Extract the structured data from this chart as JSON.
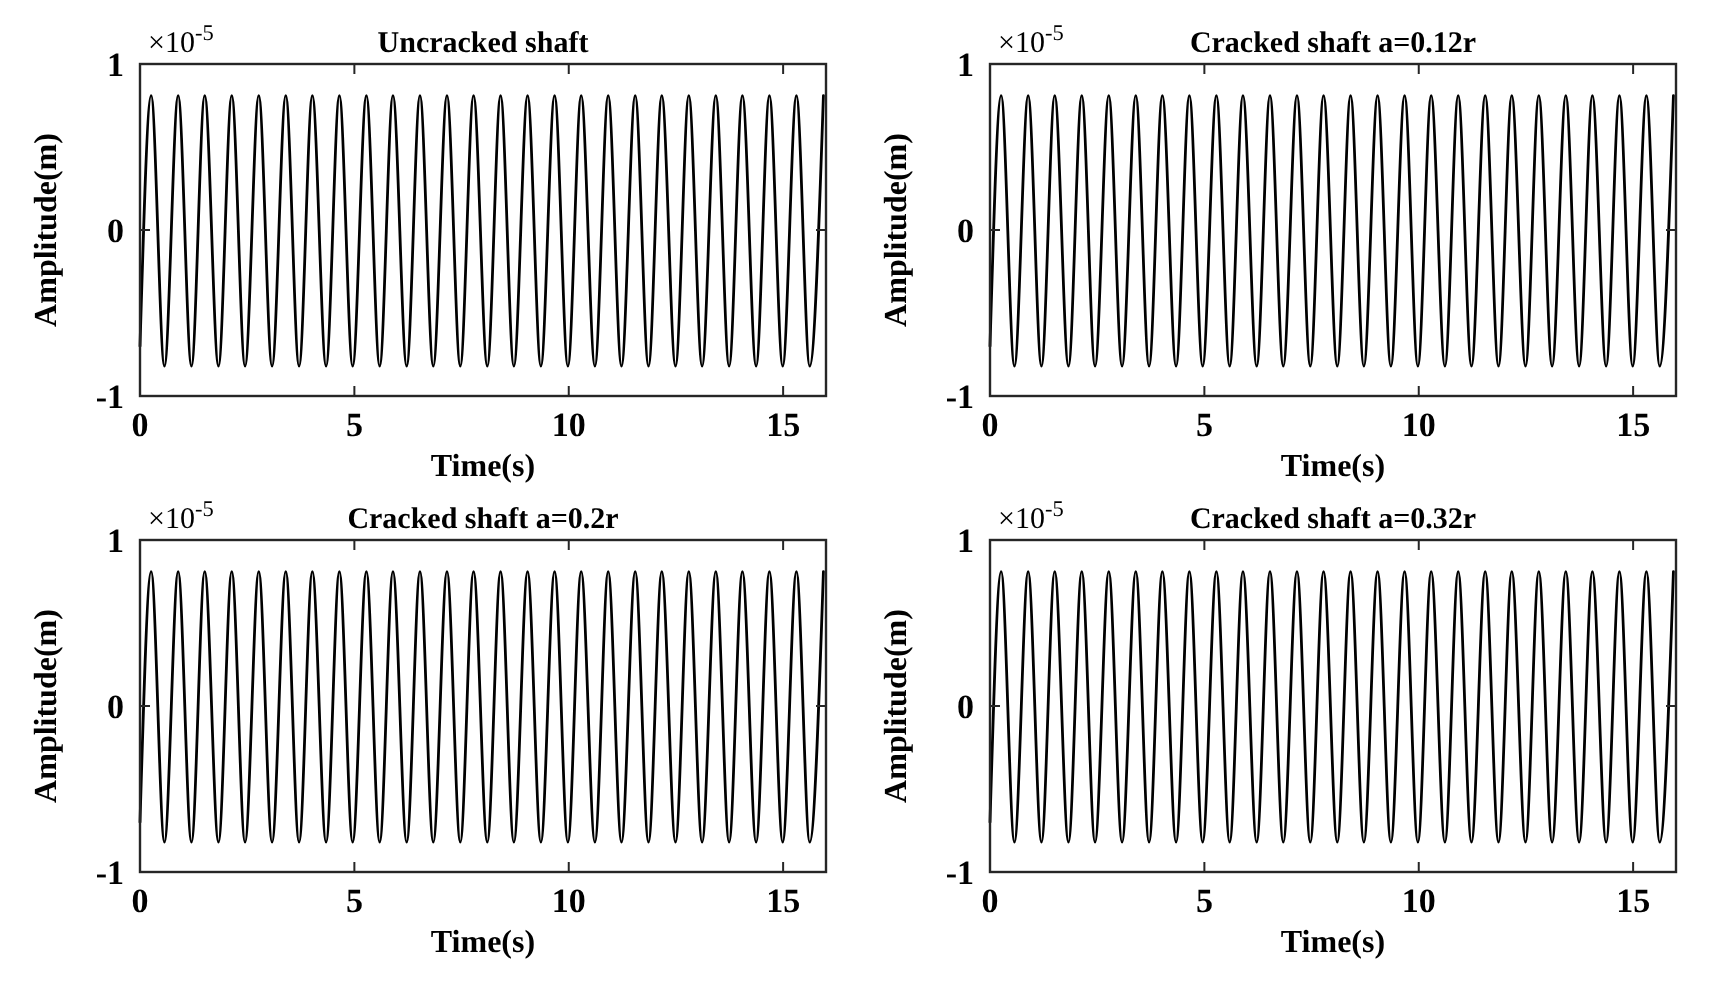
{
  "chart_data": [
    {
      "type": "line",
      "title": "Uncracked shaft",
      "xlabel": "Time(s)",
      "ylabel": "Amplitude(m)",
      "annotations": [
        "×10$^{-5}$"
      ],
      "xlim": [
        0,
        16
      ],
      "xticks": [
        0,
        5,
        10,
        15
      ],
      "ylim": [
        -1,
        1
      ],
      "yticks": [
        -1,
        0,
        1
      ],
      "color": "#000000",
      "x": [
        0,
        0.26,
        0.57,
        0.89,
        1.2,
        1.51,
        1.83,
        2.14,
        2.45,
        2.77,
        3.08,
        3.4,
        3.71,
        4.02,
        4.34,
        4.65,
        4.96,
        5.28,
        5.59,
        5.9,
        6.22,
        6.53,
        6.84,
        7.16,
        7.47,
        7.78,
        8.1,
        8.41,
        8.72,
        9.04,
        9.35,
        9.67,
        9.98,
        10.29,
        10.61,
        10.92,
        11.23,
        11.55,
        11.86,
        12.17,
        12.49,
        12.8,
        13.11,
        13.43,
        13.74,
        14.05,
        14.37,
        14.68,
        14.99,
        15.31,
        15.62,
        15.94
      ],
      "values": [
        -0.7,
        0.81,
        -0.82,
        0.81,
        -0.82,
        0.81,
        -0.82,
        0.81,
        -0.82,
        0.81,
        -0.82,
        0.81,
        -0.82,
        0.81,
        -0.82,
        0.81,
        -0.82,
        0.81,
        -0.82,
        0.81,
        -0.82,
        0.81,
        -0.82,
        0.81,
        -0.82,
        0.81,
        -0.82,
        0.81,
        -0.82,
        0.81,
        -0.82,
        0.81,
        -0.82,
        0.81,
        -0.82,
        0.81,
        -0.82,
        0.81,
        -0.82,
        0.81,
        -0.82,
        0.81,
        -0.82,
        0.81,
        -0.82,
        0.81,
        -0.82,
        0.81,
        -0.82,
        0.81,
        -0.82,
        0.81
      ]
    },
    {
      "type": "line",
      "title": "Cracked shaft a=0.12r",
      "xlabel": "Time(s)",
      "ylabel": "Amplitude(m)",
      "annotations": [
        "×10$^{-5}$"
      ],
      "xlim": [
        0,
        16
      ],
      "xticks": [
        0,
        5,
        10,
        15
      ],
      "ylim": [
        -1,
        1
      ],
      "yticks": [
        -1,
        0,
        1
      ],
      "color": "#000000",
      "x": [
        0,
        0.26,
        0.57,
        0.89,
        1.2,
        1.51,
        1.83,
        2.14,
        2.45,
        2.77,
        3.08,
        3.4,
        3.71,
        4.02,
        4.34,
        4.65,
        4.96,
        5.28,
        5.59,
        5.9,
        6.22,
        6.53,
        6.84,
        7.16,
        7.47,
        7.78,
        8.1,
        8.41,
        8.72,
        9.04,
        9.35,
        9.67,
        9.98,
        10.29,
        10.61,
        10.92,
        11.23,
        11.55,
        11.86,
        12.17,
        12.49,
        12.8,
        13.11,
        13.43,
        13.74,
        14.05,
        14.37,
        14.68,
        14.99,
        15.31,
        15.62,
        15.94
      ],
      "values": [
        -0.7,
        0.81,
        -0.82,
        0.81,
        -0.82,
        0.81,
        -0.82,
        0.81,
        -0.82,
        0.81,
        -0.82,
        0.81,
        -0.82,
        0.81,
        -0.82,
        0.81,
        -0.82,
        0.81,
        -0.82,
        0.81,
        -0.82,
        0.81,
        -0.82,
        0.81,
        -0.82,
        0.81,
        -0.82,
        0.81,
        -0.82,
        0.81,
        -0.82,
        0.81,
        -0.82,
        0.81,
        -0.82,
        0.81,
        -0.82,
        0.81,
        -0.82,
        0.81,
        -0.82,
        0.81,
        -0.82,
        0.81,
        -0.82,
        0.81,
        -0.82,
        0.81,
        -0.82,
        0.81,
        -0.82,
        0.81
      ]
    },
    {
      "type": "line",
      "title": "Cracked shaft a=0.2r",
      "xlabel": "Time(s)",
      "ylabel": "Amplitude(m)",
      "annotations": [
        "×10$^{-5}$"
      ],
      "xlim": [
        0,
        16
      ],
      "xticks": [
        0,
        5,
        10,
        15
      ],
      "ylim": [
        -1,
        1
      ],
      "yticks": [
        -1,
        0,
        1
      ],
      "color": "#000000",
      "x": [
        0,
        0.26,
        0.57,
        0.89,
        1.2,
        1.51,
        1.83,
        2.14,
        2.45,
        2.77,
        3.08,
        3.4,
        3.71,
        4.02,
        4.34,
        4.65,
        4.96,
        5.28,
        5.59,
        5.9,
        6.22,
        6.53,
        6.84,
        7.16,
        7.47,
        7.78,
        8.1,
        8.41,
        8.72,
        9.04,
        9.35,
        9.67,
        9.98,
        10.29,
        10.61,
        10.92,
        11.23,
        11.55,
        11.86,
        12.17,
        12.49,
        12.8,
        13.11,
        13.43,
        13.74,
        14.05,
        14.37,
        14.68,
        14.99,
        15.31,
        15.62,
        15.94
      ],
      "values": [
        -0.7,
        0.81,
        -0.82,
        0.81,
        -0.82,
        0.81,
        -0.82,
        0.81,
        -0.82,
        0.81,
        -0.82,
        0.81,
        -0.82,
        0.81,
        -0.82,
        0.81,
        -0.82,
        0.81,
        -0.82,
        0.81,
        -0.82,
        0.81,
        -0.82,
        0.81,
        -0.82,
        0.81,
        -0.82,
        0.81,
        -0.82,
        0.81,
        -0.82,
        0.81,
        -0.82,
        0.81,
        -0.82,
        0.81,
        -0.82,
        0.81,
        -0.82,
        0.81,
        -0.82,
        0.81,
        -0.82,
        0.81,
        -0.82,
        0.81,
        -0.82,
        0.81,
        -0.82,
        0.81,
        -0.82,
        0.81
      ]
    },
    {
      "type": "line",
      "title": "Cracked shaft a=0.32r",
      "xlabel": "Time(s)",
      "ylabel": "Amplitude(m)",
      "annotations": [
        "×10$^{-5}$"
      ],
      "xlim": [
        0,
        16
      ],
      "xticks": [
        0,
        5,
        10,
        15
      ],
      "ylim": [
        -1,
        1
      ],
      "yticks": [
        -1,
        0,
        1
      ],
      "color": "#000000",
      "x": [
        0,
        0.26,
        0.57,
        0.89,
        1.2,
        1.51,
        1.83,
        2.14,
        2.45,
        2.77,
        3.08,
        3.4,
        3.71,
        4.02,
        4.34,
        4.65,
        4.96,
        5.28,
        5.59,
        5.9,
        6.22,
        6.53,
        6.84,
        7.16,
        7.47,
        7.78,
        8.1,
        8.41,
        8.72,
        9.04,
        9.35,
        9.67,
        9.98,
        10.29,
        10.61,
        10.92,
        11.23,
        11.55,
        11.86,
        12.17,
        12.49,
        12.8,
        13.11,
        13.43,
        13.74,
        14.05,
        14.37,
        14.68,
        14.99,
        15.31,
        15.62,
        15.94
      ],
      "values": [
        -0.7,
        0.81,
        -0.82,
        0.81,
        -0.82,
        0.81,
        -0.82,
        0.81,
        -0.82,
        0.81,
        -0.82,
        0.81,
        -0.82,
        0.81,
        -0.82,
        0.81,
        -0.82,
        0.81,
        -0.82,
        0.81,
        -0.82,
        0.81,
        -0.82,
        0.81,
        -0.82,
        0.81,
        -0.82,
        0.81,
        -0.82,
        0.81,
        -0.82,
        0.81,
        -0.82,
        0.81,
        -0.82,
        0.81,
        -0.82,
        0.81,
        -0.82,
        0.81,
        -0.82,
        0.81,
        -0.82,
        0.81,
        -0.82,
        0.81,
        -0.82,
        0.81,
        -0.82,
        0.81,
        -0.82,
        0.81
      ]
    }
  ]
}
